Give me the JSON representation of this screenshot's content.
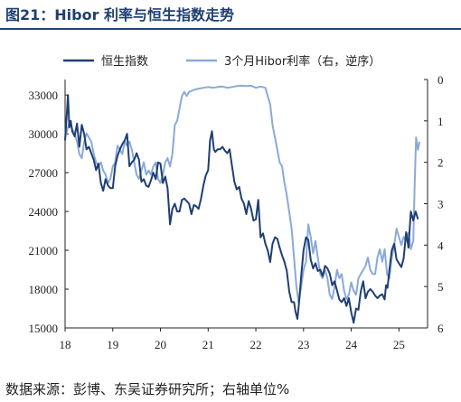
{
  "chart_data": {
    "type": "line",
    "title": "图21：Hibor 利率与恒生指数走势",
    "source": "数据来源：彭博、东吴证券研究所；右轴单位%",
    "x_tick_labels": [
      "18",
      "19",
      "20",
      "21",
      "22",
      "23",
      "24",
      "25"
    ],
    "left_axis": {
      "ticks": [
        33000,
        30000,
        27000,
        24000,
        21000,
        18000,
        15000
      ],
      "ylim": [
        15000,
        34200
      ]
    },
    "right_axis": {
      "ticks": [
        0,
        1,
        2,
        3,
        4,
        5,
        6
      ],
      "ylim": [
        0,
        6
      ],
      "inverted": true
    },
    "legend_position": "top",
    "grid": false,
    "series": [
      {
        "name": "恒生指数",
        "axis": "left",
        "color": "#1f3f73",
        "x": [
          2018.0,
          2018.03,
          2018.06,
          2018.09,
          2018.12,
          2018.15,
          2018.2,
          2018.25,
          2018.3,
          2018.35,
          2018.4,
          2018.45,
          2018.5,
          2018.55,
          2018.6,
          2018.65,
          2018.7,
          2018.75,
          2018.8,
          2018.85,
          2018.9,
          2018.95,
          2019.0,
          2019.05,
          2019.1,
          2019.15,
          2019.2,
          2019.25,
          2019.3,
          2019.35,
          2019.4,
          2019.45,
          2019.5,
          2019.55,
          2019.6,
          2019.65,
          2019.7,
          2019.75,
          2019.8,
          2019.85,
          2019.9,
          2019.95,
          2020.0,
          2020.05,
          2020.1,
          2020.15,
          2020.2,
          2020.25,
          2020.3,
          2020.35,
          2020.4,
          2020.45,
          2020.5,
          2020.55,
          2020.6,
          2020.65,
          2020.7,
          2020.75,
          2020.8,
          2020.85,
          2020.9,
          2020.95,
          2021.0,
          2021.04,
          2021.08,
          2021.12,
          2021.15,
          2021.2,
          2021.25,
          2021.3,
          2021.35,
          2021.4,
          2021.45,
          2021.5,
          2021.55,
          2021.6,
          2021.65,
          2021.7,
          2021.75,
          2021.8,
          2021.85,
          2021.9,
          2021.95,
          2022.0,
          2022.05,
          2022.1,
          2022.15,
          2022.2,
          2022.25,
          2022.3,
          2022.35,
          2022.4,
          2022.45,
          2022.5,
          2022.55,
          2022.6,
          2022.65,
          2022.7,
          2022.75,
          2022.8,
          2022.83,
          2022.87,
          2022.9,
          2022.95,
          2023.0,
          2023.05,
          2023.1,
          2023.15,
          2023.2,
          2023.25,
          2023.3,
          2023.35,
          2023.4,
          2023.45,
          2023.5,
          2023.55,
          2023.6,
          2023.65,
          2023.7,
          2023.75,
          2023.8,
          2023.85,
          2023.9,
          2023.95,
          2024.0,
          2024.05,
          2024.1,
          2024.15,
          2024.2,
          2024.25,
          2024.3,
          2024.35,
          2024.4,
          2024.45,
          2024.5,
          2024.55,
          2024.6,
          2024.65,
          2024.7,
          2024.73,
          2024.76,
          2024.8,
          2024.85,
          2024.9,
          2024.95,
          2025.0,
          2025.05,
          2025.1,
          2025.15,
          2025.2,
          2025.25,
          2025.3,
          2025.35,
          2025.4
        ],
        "values": [
          29500,
          31200,
          33000,
          30500,
          31000,
          30200,
          29800,
          30800,
          29000,
          30700,
          30000,
          28800,
          29000,
          28500,
          28000,
          27200,
          27700,
          26200,
          25600,
          26500,
          26000,
          25800,
          25800,
          27500,
          28300,
          28800,
          29200,
          29500,
          30000,
          27500,
          27800,
          28000,
          28500,
          28000,
          26300,
          26500,
          26000,
          25900,
          26400,
          27000,
          26500,
          27800,
          27700,
          26200,
          26700,
          25800,
          23000,
          24200,
          24600,
          24000,
          24000,
          24900,
          25000,
          24800,
          24600,
          23800,
          24500,
          24400,
          24200,
          25000,
          26000,
          26800,
          27200,
          29500,
          30200,
          28800,
          28600,
          28800,
          28800,
          29000,
          28700,
          28500,
          28800,
          27500,
          26300,
          25700,
          25900,
          25000,
          24600,
          23800,
          24800,
          24200,
          23300,
          23400,
          24900,
          22000,
          22300,
          21500,
          21000,
          20100,
          21500,
          22000,
          21900,
          21200,
          20600,
          20100,
          19400,
          17800,
          17000,
          17000,
          16300,
          15700,
          16700,
          19000,
          21000,
          22000,
          21800,
          20300,
          19600,
          20000,
          19400,
          19500,
          19000,
          19800,
          19600,
          19200,
          18300,
          18600,
          17900,
          17200,
          17000,
          17300,
          16700,
          17300,
          16200,
          15400,
          16500,
          16400,
          17800,
          18600,
          17300,
          17800,
          18000,
          17800,
          17500,
          17300,
          17500,
          17600,
          17200,
          18300,
          18100,
          19500,
          21000,
          21500,
          20300,
          20000,
          19700,
          20400,
          22400,
          21200,
          24000,
          23300,
          24000,
          23400
        ]
      },
      {
        "name": "3个月Hibor利率（右，逆序）",
        "axis": "right",
        "color": "#8aaad8",
        "x": [
          2018.0,
          2018.05,
          2018.1,
          2018.15,
          2018.2,
          2018.25,
          2018.3,
          2018.35,
          2018.4,
          2018.45,
          2018.5,
          2018.55,
          2018.6,
          2018.65,
          2018.7,
          2018.75,
          2018.8,
          2018.85,
          2018.9,
          2018.95,
          2019.0,
          2019.05,
          2019.1,
          2019.15,
          2019.2,
          2019.25,
          2019.3,
          2019.35,
          2019.4,
          2019.45,
          2019.5,
          2019.55,
          2019.6,
          2019.65,
          2019.7,
          2019.75,
          2019.8,
          2019.85,
          2019.9,
          2019.95,
          2020.0,
          2020.05,
          2020.1,
          2020.15,
          2020.2,
          2020.25,
          2020.3,
          2020.35,
          2020.4,
          2020.45,
          2020.5,
          2020.55,
          2020.6,
          2020.7,
          2020.8,
          2020.9,
          2021.0,
          2021.1,
          2021.2,
          2021.3,
          2021.4,
          2021.5,
          2021.6,
          2021.7,
          2021.8,
          2021.9,
          2022.0,
          2022.1,
          2022.2,
          2022.25,
          2022.3,
          2022.35,
          2022.4,
          2022.45,
          2022.5,
          2022.55,
          2022.6,
          2022.65,
          2022.7,
          2022.75,
          2022.8,
          2022.85,
          2022.9,
          2022.95,
          2023.0,
          2023.05,
          2023.1,
          2023.15,
          2023.2,
          2023.25,
          2023.3,
          2023.35,
          2023.4,
          2023.45,
          2023.5,
          2023.55,
          2023.6,
          2023.65,
          2023.7,
          2023.75,
          2023.8,
          2023.85,
          2023.9,
          2023.95,
          2024.0,
          2024.05,
          2024.1,
          2024.15,
          2024.2,
          2024.25,
          2024.3,
          2024.35,
          2024.4,
          2024.45,
          2024.5,
          2024.55,
          2024.6,
          2024.65,
          2024.7,
          2024.75,
          2024.8,
          2024.85,
          2024.9,
          2024.95,
          2025.0,
          2025.05,
          2025.1,
          2025.15,
          2025.2,
          2025.25,
          2025.3,
          2025.33,
          2025.36,
          2025.4,
          2025.43
        ],
        "values": [
          1.4,
          1.2,
          1.0,
          1.2,
          1.3,
          1.5,
          1.8,
          1.9,
          1.5,
          1.3,
          1.4,
          1.5,
          1.8,
          2.0,
          2.1,
          2.0,
          2.2,
          2.3,
          2.5,
          2.4,
          2.1,
          2.0,
          1.6,
          1.7,
          1.8,
          1.5,
          1.6,
          1.5,
          1.7,
          2.0,
          2.3,
          2.4,
          2.2,
          2.0,
          2.3,
          2.2,
          2.3,
          2.1,
          2.0,
          2.4,
          2.5,
          2.3,
          2.0,
          1.9,
          2.1,
          1.8,
          1.1,
          1.0,
          0.7,
          0.4,
          0.3,
          0.4,
          0.3,
          0.25,
          0.22,
          0.2,
          0.18,
          0.2,
          0.18,
          0.17,
          0.2,
          0.18,
          0.16,
          0.15,
          0.16,
          0.15,
          0.2,
          0.17,
          0.2,
          0.4,
          0.6,
          1.1,
          1.4,
          1.7,
          2.0,
          2.1,
          2.5,
          2.8,
          3.2,
          3.6,
          4.3,
          5.0,
          5.4,
          5.0,
          4.6,
          4.4,
          3.5,
          3.8,
          4.2,
          3.9,
          4.3,
          4.7,
          4.8,
          4.6,
          4.8,
          5.2,
          5.3,
          5.0,
          4.6,
          4.8,
          4.7,
          5.1,
          5.3,
          5.2,
          4.9,
          5.1,
          5.2,
          4.8,
          4.7,
          4.6,
          4.5,
          4.3,
          4.6,
          4.7,
          4.7,
          4.3,
          4.1,
          4.4,
          4.1,
          4.7,
          4.8,
          4.3,
          4.0,
          3.6,
          3.8,
          4.0,
          3.8,
          3.9,
          3.7,
          4.1,
          3.9,
          2.5,
          1.4,
          1.7,
          1.5
        ]
      }
    ]
  }
}
